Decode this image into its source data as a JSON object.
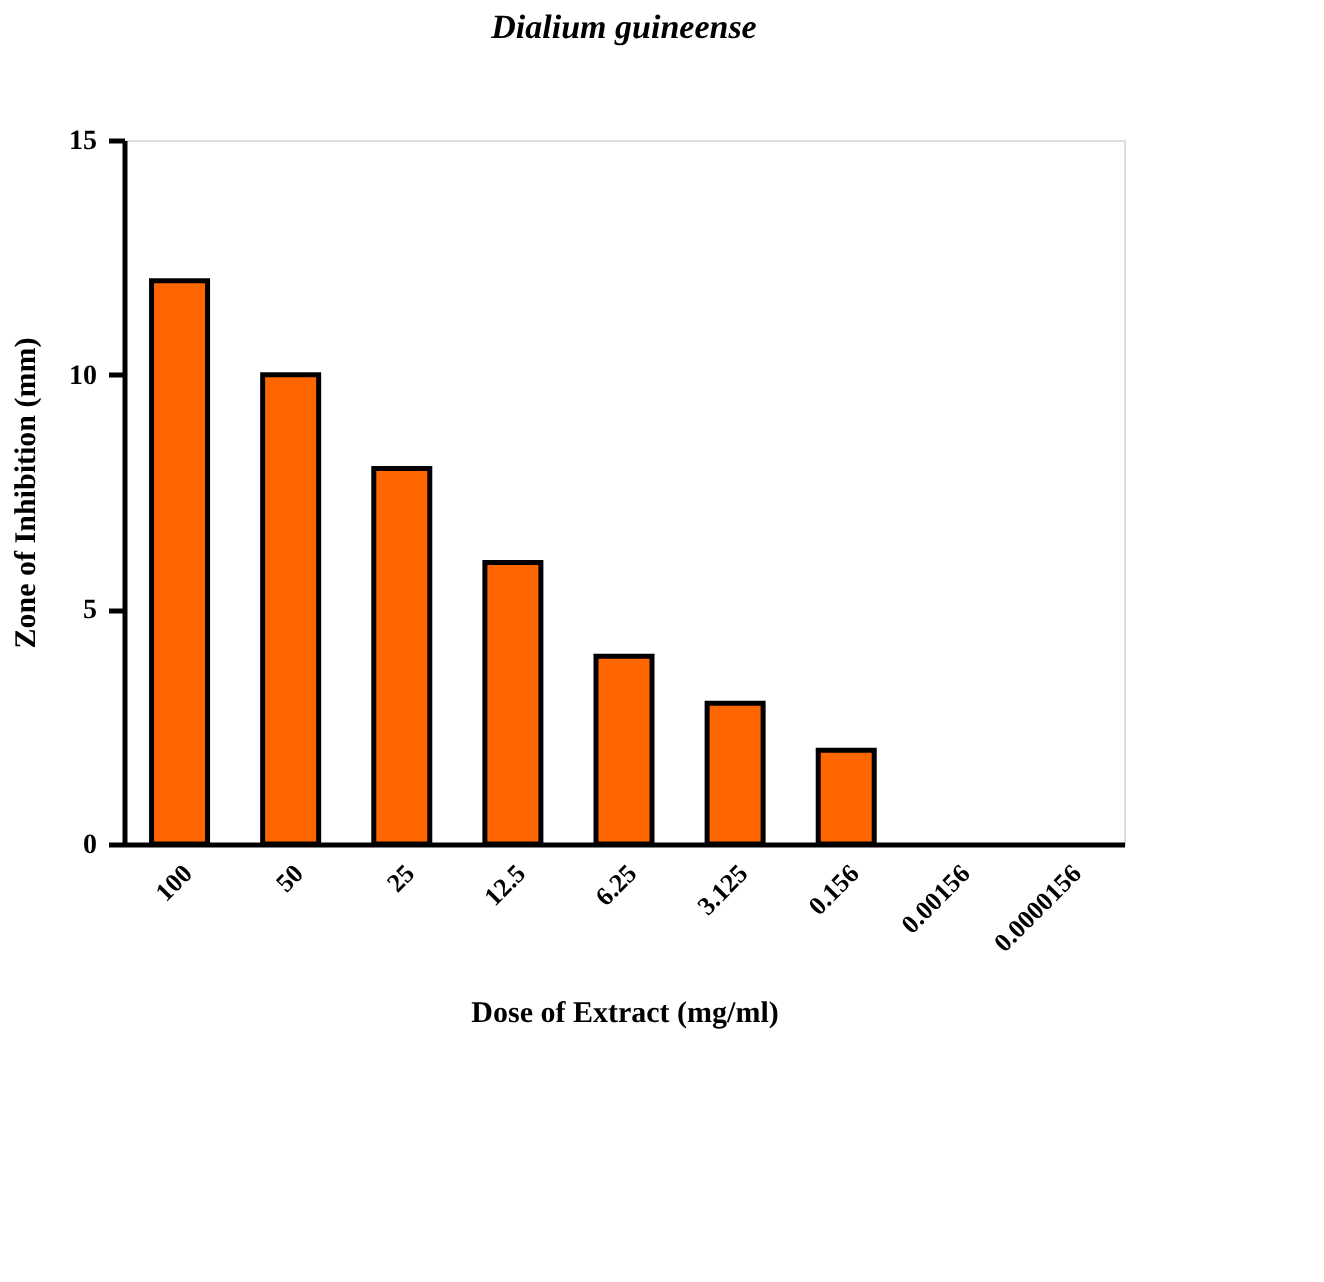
{
  "chart_data": {
    "type": "bar",
    "title": "Dialium guineense",
    "xlabel": "Dose of Extract (mg/ml)",
    "ylabel": "Zone of Inhibition (mm)",
    "categories": [
      "100",
      "50",
      "25",
      "12.5",
      "6.25",
      "3.125",
      "0.156",
      "0.00156",
      "0.0000156"
    ],
    "values": [
      12,
      10,
      8,
      6,
      4,
      3,
      2,
      0,
      0
    ],
    "color": "#ff6600",
    "ylim": [
      0,
      15
    ],
    "yticks": [
      0,
      5,
      10,
      15
    ],
    "grid": false,
    "legend": false
  }
}
